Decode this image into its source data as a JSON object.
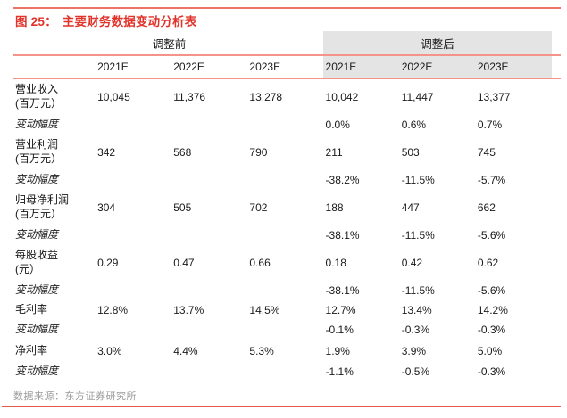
{
  "figure": {
    "title_prefix": "图 25：",
    "title_text": "主要财务数据变动分析表"
  },
  "table": {
    "group_headers": {
      "before": "调整前",
      "after": "调整后"
    },
    "year_headers": [
      "2021E",
      "2022E",
      "2023E",
      "2021E",
      "2022E",
      "2023E"
    ],
    "rows": [
      {
        "label": "营业收入",
        "label2": "(百万元）",
        "tall": true,
        "italic": false,
        "values": [
          "10,045",
          "11,376",
          "13,278",
          "10,042",
          "11,447",
          "13,377"
        ]
      },
      {
        "label": "变动幅度",
        "label2": "",
        "tall": false,
        "italic": true,
        "values": [
          "",
          "",
          "",
          "0.0%",
          "0.6%",
          "0.7%"
        ]
      },
      {
        "label": "营业利润",
        "label2": "(百万元）",
        "tall": true,
        "italic": false,
        "values": [
          "342",
          "568",
          "790",
          "211",
          "503",
          "745"
        ]
      },
      {
        "label": "变动幅度",
        "label2": "",
        "tall": false,
        "italic": true,
        "values": [
          "",
          "",
          "",
          "-38.2%",
          "-11.5%",
          "-5.7%"
        ]
      },
      {
        "label": "归母净利润",
        "label2": "(百万元）",
        "tall": true,
        "italic": false,
        "values": [
          "304",
          "505",
          "702",
          "188",
          "447",
          "662"
        ]
      },
      {
        "label": "变动幅度",
        "label2": "",
        "tall": false,
        "italic": true,
        "values": [
          "",
          "",
          "",
          "-38.1%",
          "-11.5%",
          "-5.6%"
        ]
      },
      {
        "label": "每股收益",
        "label2": "(元）",
        "tall": true,
        "italic": false,
        "values": [
          "0.29",
          "0.47",
          "0.66",
          "0.18",
          "0.42",
          "0.62"
        ]
      },
      {
        "label": "变动幅度",
        "label2": "",
        "tall": false,
        "italic": true,
        "values": [
          "",
          "",
          "",
          "-38.1%",
          "-11.5%",
          "-5.6%"
        ]
      },
      {
        "label": "毛利率",
        "label2": "",
        "tall": false,
        "italic": false,
        "values": [
          "12.8%",
          "13.7%",
          "14.5%",
          "12.7%",
          "13.4%",
          "14.2%"
        ]
      },
      {
        "label": "变动幅度",
        "label2": "",
        "tall": false,
        "italic": true,
        "values": [
          "",
          "",
          "",
          "-0.1%",
          "-0.3%",
          "-0.3%"
        ]
      },
      {
        "label": "净利率",
        "label2": "",
        "tall": false,
        "italic": false,
        "values": [
          "3.0%",
          "4.4%",
          "5.3%",
          "1.9%",
          "3.9%",
          "5.0%"
        ]
      },
      {
        "label": "变动幅度",
        "label2": "",
        "tall": false,
        "italic": true,
        "values": [
          "",
          "",
          "",
          "-1.1%",
          "-0.5%",
          "-0.3%"
        ]
      }
    ]
  },
  "footer": {
    "source": "数据来源：东方证券研究所"
  },
  "colors": {
    "title_red": "#e1332a",
    "top_rule_red": "#ee7266",
    "inner_rule_pink": "#f4938a",
    "bottom_rule_red": "#e85948",
    "header_gray_bg": "#e4e4e4",
    "body_text": "#1a1a1a",
    "source_gray": "#9b9b9b"
  }
}
